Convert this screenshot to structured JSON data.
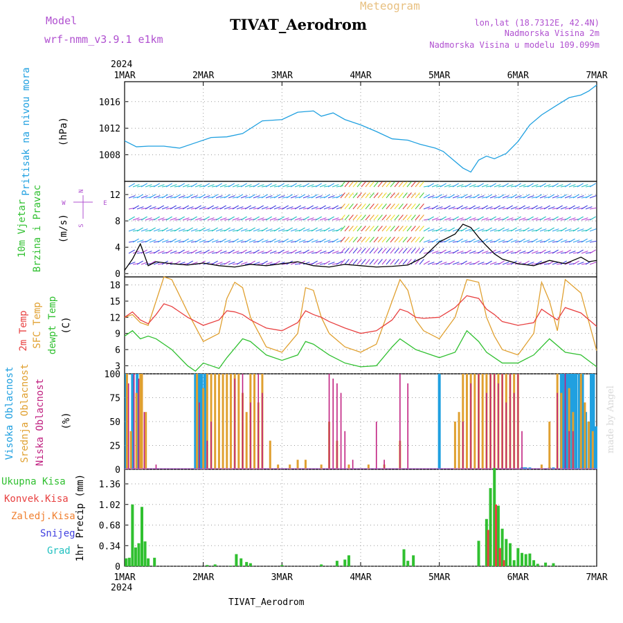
{
  "header": {
    "model_label": "Model",
    "model_name": "wrf-nmm_v3.9.1 e1km",
    "product": "Meteogram",
    "station": "TIVAT_Aerodrom",
    "lonlat": "lon,lat (18.7312E, 42.4N)",
    "elevation": "Nadmorska Visina 2m",
    "model_elevation": "Nadmorska Visina u modelu 109.099m",
    "year_top": "2024",
    "year_bottom": "2024",
    "footer_station": "TIVAT_Aerodrom",
    "watermark": "made by Angel"
  },
  "colors": {
    "pressure": "#1fa0e0",
    "temp2m": "#e84040",
    "sfc": "#e0a030",
    "dewpt": "#30c030",
    "high": "#20a0e0",
    "mid": "#e0a030",
    "low": "#c02080",
    "total": "#30c030",
    "conv": "#e84040",
    "frozen": "#f08030",
    "snow": "#4040e0",
    "hail": "#20c0c0",
    "purple": "#b050d0"
  },
  "chart_data": [
    {
      "type": "line",
      "title": "",
      "x_ticks": [
        "1MAR",
        "2MAR",
        "3MAR",
        "4MAR",
        "5MAR",
        "6MAR",
        "7MAR"
      ],
      "xlim": [
        0,
        6
      ],
      "ylabel": "Pritisak na nivou mora",
      "unit": "(hPa)",
      "yticks": [
        "1008",
        "1012",
        "1016"
      ],
      "ylim": [
        1004,
        1019
      ],
      "grid": true,
      "series": [
        {
          "name": "Pritisak na nivou mora",
          "x": [
            0,
            0.15,
            0.3,
            0.5,
            0.7,
            0.9,
            1.1,
            1.3,
            1.5,
            1.75,
            2.0,
            2.2,
            2.4,
            2.5,
            2.65,
            2.8,
            3.0,
            3.2,
            3.4,
            3.6,
            3.7,
            3.75,
            3.85,
            3.95,
            4.05,
            4.1,
            4.2,
            4.3,
            4.4,
            4.5,
            4.6,
            4.7,
            4.85,
            5.0,
            5.15,
            5.3,
            5.5,
            5.65,
            5.8,
            5.9,
            6.0
          ],
          "values": [
            1010.1,
            1009.2,
            1009.3,
            1009.3,
            1009.0,
            1009.8,
            1010.6,
            1010.7,
            1011.2,
            1013.1,
            1013.3,
            1014.4,
            1014.6,
            1013.8,
            1014.3,
            1013.3,
            1012.5,
            1011.5,
            1010.4,
            1010.2,
            1009.8,
            1009.6,
            1009.3,
            1009.0,
            1008.5,
            1008.0,
            1007.0,
            1006.0,
            1005.4,
            1007.2,
            1007.8,
            1007.4,
            1008.2,
            1010.0,
            1012.5,
            1014.0,
            1015.5,
            1016.6,
            1017.0,
            1017.6,
            1018.5
          ]
        }
      ]
    },
    {
      "type": "line",
      "title": "",
      "ylabel": "10m Vjetar Brzina i Pravac",
      "unit": "(m/s)",
      "yticks": [
        "0",
        "4",
        "8",
        "12"
      ],
      "ylim": [
        -0.5,
        14
      ],
      "legend_compass": [
        "N",
        "W",
        "E",
        "S"
      ],
      "series": [
        {
          "name": "10m Vjetar",
          "x": [
            0,
            0.1,
            0.2,
            0.3,
            0.4,
            0.6,
            0.8,
            1.0,
            1.2,
            1.4,
            1.6,
            1.8,
            2.0,
            2.2,
            2.4,
            2.6,
            2.8,
            3.0,
            3.2,
            3.4,
            3.6,
            3.8,
            4.0,
            4.2,
            4.3,
            4.4,
            4.5,
            4.6,
            4.7,
            4.8,
            5.0,
            5.2,
            5.4,
            5.6,
            5.8,
            5.9,
            6.0
          ],
          "values": [
            0.5,
            2.2,
            4.5,
            1.2,
            1.8,
            1.5,
            1.3,
            1.6,
            1.2,
            1.0,
            1.4,
            1.2,
            1.5,
            1.8,
            1.2,
            1.0,
            1.4,
            1.2,
            1.0,
            1.1,
            1.3,
            2.5,
            4.8,
            6.0,
            7.5,
            7.0,
            5.5,
            4.2,
            3.0,
            2.2,
            1.5,
            1.2,
            2.0,
            1.5,
            2.5,
            1.8,
            2.0
          ]
        }
      ]
    },
    {
      "type": "line",
      "title": "",
      "ylabel": "2m Temp / SFC Temp / dewpt Temp",
      "unit": "(C)",
      "yticks": [
        "3",
        "6",
        "9",
        "12",
        "15",
        "18"
      ],
      "ylim": [
        1.5,
        19.5
      ],
      "series": [
        {
          "name": "2m Temp",
          "x": [
            0,
            0.1,
            0.2,
            0.3,
            0.4,
            0.5,
            0.6,
            0.8,
            1.0,
            1.2,
            1.3,
            1.4,
            1.5,
            1.6,
            1.8,
            2.0,
            2.2,
            2.3,
            2.4,
            2.5,
            2.6,
            2.8,
            3.0,
            3.2,
            3.4,
            3.5,
            3.6,
            3.7,
            3.8,
            4.0,
            4.2,
            4.35,
            4.5,
            4.6,
            4.7,
            4.8,
            5.0,
            5.2,
            5.3,
            5.4,
            5.5,
            5.6,
            5.8,
            6.0
          ],
          "values": [
            12.0,
            13.0,
            11.5,
            10.8,
            12.5,
            14.5,
            14.0,
            12.0,
            10.5,
            11.5,
            13.2,
            13.0,
            12.5,
            11.5,
            10.0,
            9.5,
            11.0,
            13.2,
            12.5,
            12.0,
            11.2,
            10.0,
            9.0,
            9.5,
            11.5,
            13.5,
            13.0,
            12.0,
            11.8,
            12.0,
            13.8,
            16.0,
            15.5,
            13.5,
            12.5,
            11.2,
            10.5,
            11.0,
            13.5,
            12.5,
            11.5,
            13.8,
            12.8,
            10.3
          ]
        },
        {
          "name": "SFC Temp",
          "x": [
            0,
            0.1,
            0.2,
            0.3,
            0.4,
            0.5,
            0.6,
            0.8,
            1.0,
            1.2,
            1.3,
            1.4,
            1.5,
            1.6,
            1.8,
            2.0,
            2.2,
            2.3,
            2.4,
            2.5,
            2.6,
            2.8,
            3.0,
            3.2,
            3.4,
            3.5,
            3.6,
            3.7,
            3.8,
            4.0,
            4.2,
            4.35,
            4.5,
            4.6,
            4.7,
            4.8,
            5.0,
            5.2,
            5.3,
            5.4,
            5.5,
            5.6,
            5.8,
            6.0
          ],
          "values": [
            12.0,
            12.5,
            11.0,
            10.5,
            15.0,
            19.5,
            19.0,
            13.0,
            7.5,
            9.0,
            15.5,
            18.5,
            17.5,
            12.0,
            6.5,
            5.5,
            9.0,
            17.5,
            17.0,
            12.0,
            9.0,
            6.5,
            5.5,
            7.0,
            15.0,
            19.0,
            17.0,
            11.5,
            9.5,
            8.0,
            12.0,
            19.0,
            18.5,
            12.0,
            8.5,
            6.0,
            5.0,
            9.0,
            18.5,
            15.0,
            9.5,
            19.0,
            16.5,
            5.8
          ]
        },
        {
          "name": "dewpt Temp",
          "x": [
            0,
            0.1,
            0.2,
            0.3,
            0.4,
            0.6,
            0.8,
            0.9,
            1.0,
            1.2,
            1.3,
            1.5,
            1.6,
            1.8,
            2.0,
            2.2,
            2.3,
            2.4,
            2.6,
            2.8,
            3.0,
            3.2,
            3.4,
            3.5,
            3.7,
            4.0,
            4.2,
            4.35,
            4.5,
            4.6,
            4.8,
            5.0,
            5.2,
            5.4,
            5.6,
            5.8,
            6.0
          ],
          "values": [
            8.5,
            9.5,
            8.0,
            8.5,
            8.0,
            6.0,
            3.0,
            2.0,
            3.5,
            2.5,
            4.5,
            8.0,
            7.5,
            5.0,
            4.0,
            5.0,
            7.5,
            7.0,
            5.0,
            3.5,
            2.8,
            3.0,
            6.5,
            8.0,
            6.0,
            4.5,
            5.5,
            9.5,
            7.5,
            5.5,
            3.5,
            3.5,
            5.0,
            8.0,
            5.5,
            5.0,
            2.8
          ]
        }
      ]
    },
    {
      "type": "bar",
      "title": "",
      "ylabel": "Visoka Oblacnost / Srednja Oblacnost / Niska Oblacnost",
      "unit": "(%)",
      "yticks": [
        "0",
        "25",
        "50",
        "75",
        "100"
      ],
      "ylim": [
        0,
        100
      ],
      "series": [
        {
          "name": "Visoka Oblacnost",
          "x": [
            0.02,
            0.1,
            0.16,
            0.9,
            0.95,
            0.98,
            1.02,
            4.0,
            5.05,
            5.07,
            5.09,
            5.1,
            5.15,
            5.4,
            5.45,
            5.55,
            5.56,
            5.58,
            5.6,
            5.62,
            5.64,
            5.66,
            5.68,
            5.7,
            5.72,
            5.74,
            5.78,
            5.82,
            5.86,
            5.9,
            5.93,
            5.96,
            5.99
          ],
          "values": [
            100,
            100,
            100,
            100,
            100,
            100,
            100,
            100,
            2,
            2,
            2,
            2,
            2,
            2,
            2,
            100,
            100,
            100,
            100,
            100,
            100,
            100,
            100,
            100,
            100,
            100,
            100,
            100,
            60,
            50,
            100,
            100,
            45
          ]
        },
        {
          "name": "Srednja Oblacnost",
          "x": [
            0.03,
            0.08,
            0.15,
            0.2,
            0.22,
            0.27,
            0.92,
            1.0,
            1.05,
            1.1,
            1.15,
            1.2,
            1.25,
            1.3,
            1.35,
            1.4,
            1.45,
            1.5,
            1.55,
            1.6,
            1.65,
            1.7,
            1.75,
            1.85,
            1.95,
            2.1,
            2.2,
            2.3,
            2.5,
            2.6,
            2.7,
            2.85,
            3.1,
            3.3,
            3.5,
            4.2,
            4.25,
            4.3,
            4.35,
            4.4,
            4.45,
            4.5,
            4.55,
            4.6,
            4.65,
            4.7,
            4.75,
            4.8,
            4.85,
            4.9,
            4.95,
            5.0,
            5.3,
            5.4,
            5.5,
            5.55,
            5.65,
            5.7,
            5.8,
            5.85,
            5.9,
            5.95
          ],
          "values": [
            100,
            40,
            80,
            100,
            100,
            60,
            100,
            85,
            100,
            100,
            100,
            100,
            100,
            100,
            100,
            100,
            100,
            80,
            60,
            100,
            100,
            70,
            100,
            30,
            5,
            5,
            10,
            10,
            5,
            50,
            30,
            5,
            5,
            5,
            30,
            50,
            60,
            100,
            100,
            100,
            100,
            100,
            100,
            100,
            100,
            100,
            100,
            100,
            100,
            100,
            100,
            100,
            5,
            50,
            100,
            80,
            85,
            60,
            100,
            70,
            50,
            40
          ]
        },
        {
          "name": "Niska Oblacnost",
          "x": [
            0.05,
            0.12,
            0.18,
            0.25,
            0.4,
            0.95,
            1.05,
            1.1,
            1.4,
            1.5,
            1.6,
            1.7,
            1.75,
            2.6,
            2.65,
            2.7,
            2.75,
            2.8,
            2.9,
            3.2,
            3.3,
            3.5,
            3.6,
            4.3,
            4.4,
            4.5,
            4.6,
            4.65,
            4.7,
            4.75,
            4.8,
            4.85,
            4.9,
            4.95,
            5.0,
            5.05,
            5.5,
            5.6,
            5.65,
            5.7
          ],
          "values": [
            90,
            100,
            95,
            60,
            5,
            70,
            30,
            50,
            95,
            100,
            70,
            100,
            80,
            100,
            95,
            90,
            80,
            40,
            10,
            50,
            10,
            100,
            90,
            50,
            90,
            100,
            80,
            100,
            100,
            90,
            100,
            70,
            100,
            80,
            100,
            40,
            80,
            100,
            40,
            40
          ]
        }
      ]
    },
    {
      "type": "bar",
      "title": "",
      "ylabel": "1hr Precip",
      "unit": "(mm)",
      "yticks": [
        "0",
        "0.34",
        "0.68",
        "1.02",
        "1.36"
      ],
      "ylim": [
        0,
        1.6
      ],
      "x_ticks": [
        "1MAR",
        "2MAR",
        "3MAR",
        "4MAR",
        "5MAR",
        "6MAR",
        "7MAR"
      ],
      "legend": [
        "Ukupna Kisa",
        "Konvek.Kisa",
        "Zaledj.Kisa",
        "Snijeg",
        "Grad"
      ],
      "series": [
        {
          "name": "Ukupna Kisa",
          "x": [
            0.02,
            0.06,
            0.1,
            0.14,
            0.18,
            0.22,
            0.26,
            0.3,
            0.38,
            1.05,
            1.15,
            1.35,
            1.42,
            1.48,
            1.55,
            1.6,
            2.0,
            2.5,
            2.7,
            2.8,
            2.85,
            3.55,
            3.6,
            3.67,
            4.5,
            4.6,
            4.65,
            4.7,
            4.75,
            4.8,
            4.85,
            4.9,
            4.95,
            5.0,
            5.05,
            5.1,
            5.15,
            5.2,
            5.25,
            5.35,
            5.45
          ],
          "values": [
            0.13,
            0.14,
            1.02,
            0.31,
            0.38,
            0.98,
            0.41,
            0.13,
            0.14,
            0.02,
            0.03,
            0.01,
            0.2,
            0.13,
            0.07,
            0.05,
            0.02,
            0.03,
            0.09,
            0.11,
            0.18,
            0.28,
            0.09,
            0.18,
            0.42,
            0.78,
            1.29,
            1.62,
            1.0,
            0.62,
            0.45,
            0.38,
            0.1,
            0.3,
            0.22,
            0.2,
            0.21,
            0.1,
            0.04,
            0.06,
            0.05
          ]
        },
        {
          "name": "Konvek.Kisa",
          "x": [
            4.62,
            4.72,
            4.77,
            4.82
          ],
          "values": [
            0.6,
            1.02,
            0.3,
            0.1
          ]
        }
      ]
    }
  ]
}
